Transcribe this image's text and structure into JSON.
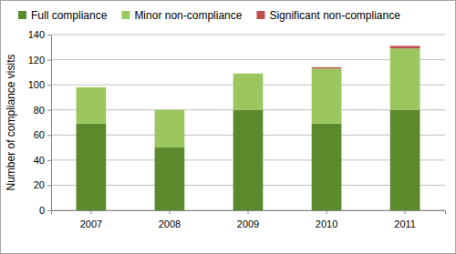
{
  "chart_data": {
    "type": "bar",
    "stacked": true,
    "grid": true,
    "legend": "top",
    "y_label": "Number of compliance visits",
    "categories": [
      "2007",
      "2008",
      "2009",
      "2010",
      "2011"
    ],
    "series": [
      {
        "name": "Full compliance",
        "color": "#5b8a2d",
        "values": [
          69,
          50,
          80,
          69,
          80
        ]
      },
      {
        "name": "Minor non-compliance",
        "color": "#9cc65e",
        "values": [
          29,
          30,
          29,
          44,
          49
        ]
      },
      {
        "name": "Significant non-compliance",
        "color": "#c0504d",
        "values": [
          0,
          0,
          0,
          1,
          2
        ]
      }
    ],
    "ylim": [
      0,
      140
    ],
    "yticks": [
      0,
      20,
      40,
      60,
      80,
      100,
      120,
      140
    ]
  }
}
